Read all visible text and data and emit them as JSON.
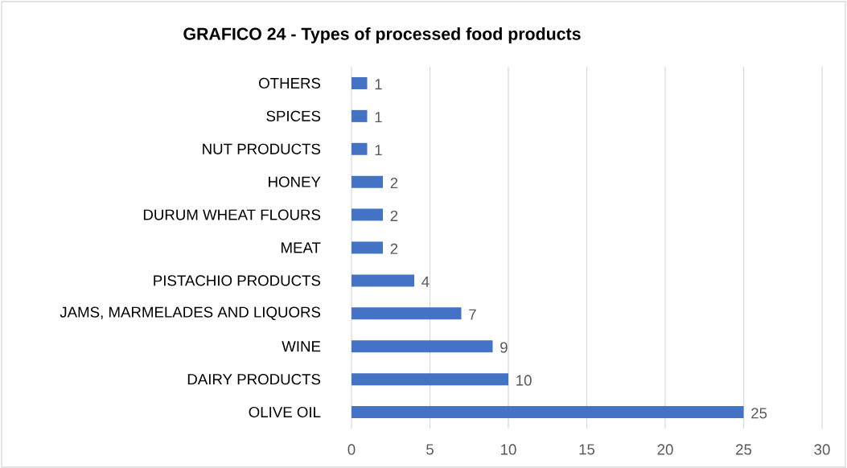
{
  "chart_data": {
    "type": "bar",
    "orientation": "horizontal",
    "title": "GRAFICO 24 - Types of processed food products",
    "categories": [
      "OTHERS",
      "SPICES",
      "NUT PRODUCTS",
      "HONEY",
      "DURUM WHEAT FLOURS",
      "MEAT",
      "PISTACHIO PRODUCTS",
      "JAMS, MARMELADES AND LIQUORS",
      "WINE",
      "DAIRY PRODUCTS",
      "OLIVE OIL"
    ],
    "values": [
      1,
      1,
      1,
      2,
      2,
      2,
      4,
      7,
      9,
      10,
      25
    ],
    "color": "#4472c4",
    "xlim": [
      0,
      30
    ],
    "xticks": [
      0,
      5,
      10,
      15,
      20,
      25,
      30
    ],
    "grid": "x",
    "data_labels": true
  }
}
